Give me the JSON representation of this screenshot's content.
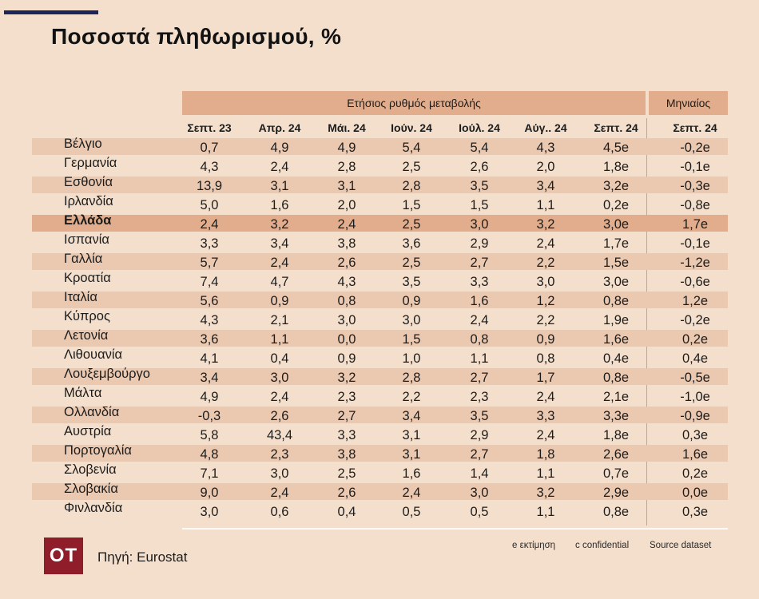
{
  "title": "Ποσοστά πληθωρισμού, %",
  "group_headers": {
    "annual": "Ετήσιος ρυθμός μεταβολής",
    "monthly": "Μηνιαίος"
  },
  "columns": [
    "Σεπτ. 23",
    "Απρ. 24",
    "Μάι. 24",
    "Ιούν. 24",
    "Ιούλ. 24",
    "Αύγ.. 24",
    "Σεπτ. 24",
    "Σεπτ. 24"
  ],
  "rows": [
    {
      "country": "Βέλγιο",
      "values": [
        "0,7",
        "4,9",
        "4,9",
        "5,4",
        "5,4",
        "4,3",
        "4,5e",
        "-0,2e"
      ]
    },
    {
      "country": "Γερμανία",
      "values": [
        "4,3",
        "2,4",
        "2,8",
        "2,5",
        "2,6",
        "2,0",
        "1,8e",
        "-0,1e"
      ]
    },
    {
      "country": "Εσθονία",
      "values": [
        "13,9",
        "3,1",
        "3,1",
        "2,8",
        "3,5",
        "3,4",
        "3,2e",
        "-0,3e"
      ]
    },
    {
      "country": "Ιρλανδία",
      "values": [
        "5,0",
        "1,6",
        "2,0",
        "1,5",
        "1,5",
        "1,1",
        "0,2e",
        "-0,8e"
      ]
    },
    {
      "country": "Ελλάδα",
      "values": [
        "2,4",
        "3,2",
        "2,4",
        "2,5",
        "3,0",
        "3,2",
        "3,0e",
        "1,7e"
      ]
    },
    {
      "country": "Ισπανία",
      "values": [
        "3,3",
        "3,4",
        "3,8",
        "3,6",
        "2,9",
        "2,4",
        "1,7e",
        "-0,1e"
      ]
    },
    {
      "country": "Γαλλία",
      "values": [
        "5,7",
        "2,4",
        "2,6",
        "2,5",
        "2,7",
        "2,2",
        "1,5e",
        "-1,2e"
      ]
    },
    {
      "country": "Κροατία",
      "values": [
        "7,4",
        "4,7",
        "4,3",
        "3,5",
        "3,3",
        "3,0",
        "3,0e",
        "-0,6e"
      ]
    },
    {
      "country": "Ιταλία",
      "values": [
        "5,6",
        "0,9",
        "0,8",
        "0,9",
        "1,6",
        "1,2",
        "0,8e",
        "1,2e"
      ]
    },
    {
      "country": "Κύπρος",
      "values": [
        "4,3",
        "2,1",
        "3,0",
        "3,0",
        "2,4",
        "2,2",
        "1,9e",
        "-0,2e"
      ]
    },
    {
      "country": "Λετονία",
      "values": [
        "3,6",
        "1,1",
        "0,0",
        "1,5",
        "0,8",
        "0,9",
        "1,6e",
        "0,2e"
      ]
    },
    {
      "country": "Λιθουανία",
      "values": [
        "4,1",
        "0,4",
        "0,9",
        "1,0",
        "1,1",
        "0,8",
        "0,4e",
        "0,4e"
      ]
    },
    {
      "country": "Λουξεμβούργο",
      "values": [
        "3,4",
        "3,0",
        "3,2",
        "2,8",
        "2,7",
        "1,7",
        "0,8e",
        "-0,5e"
      ]
    },
    {
      "country": "Μάλτα",
      "values": [
        "4,9",
        "2,4",
        "2,3",
        "2,2",
        "2,3",
        "2,4",
        "2,1e",
        "-1,0e"
      ]
    },
    {
      "country": "Ολλανδία",
      "values": [
        "-0,3",
        "2,6",
        "2,7",
        "3,4",
        "3,5",
        "3,3",
        "3,3e",
        "-0,9e"
      ]
    },
    {
      "country": "Αυστρία",
      "values": [
        "5,8",
        "43,4",
        "3,3",
        "3,1",
        "2,9",
        "2,4",
        "1,8e",
        "0,3e"
      ]
    },
    {
      "country": "Πορτογαλία",
      "values": [
        "4,8",
        "2,3",
        "3,8",
        "3,1",
        "2,7",
        "1,8",
        "2,6e",
        "1,6e"
      ]
    },
    {
      "country": "Σλοβενία",
      "values": [
        "7,1",
        "3,0",
        "2,5",
        "1,6",
        "1,4",
        "1,1",
        "0,7e",
        "0,2e"
      ]
    },
    {
      "country": "Σλοβακία",
      "values": [
        "9,0",
        "2,4",
        "2,6",
        "2,4",
        "3,0",
        "3,2",
        "2,9e",
        "0,0e"
      ]
    },
    {
      "country": "Φινλανδία",
      "values": [
        "3,0",
        "0,6",
        "0,4",
        "0,5",
        "0,5",
        "1,1",
        "0,8e",
        "0,3e"
      ]
    }
  ],
  "footer": {
    "logo": "OT",
    "source": "Πηγή: Eurostat",
    "note_estimate": "e εκτίμηση",
    "note_confidential": "c confidential",
    "source_dataset": "Source dataset"
  },
  "colors": {
    "background": "#f4dfcc",
    "stripe": "#ebc8b0",
    "highlight": "#e2ad8c",
    "accent_bar": "#1c2559",
    "logo": "#8f1d2a"
  }
}
